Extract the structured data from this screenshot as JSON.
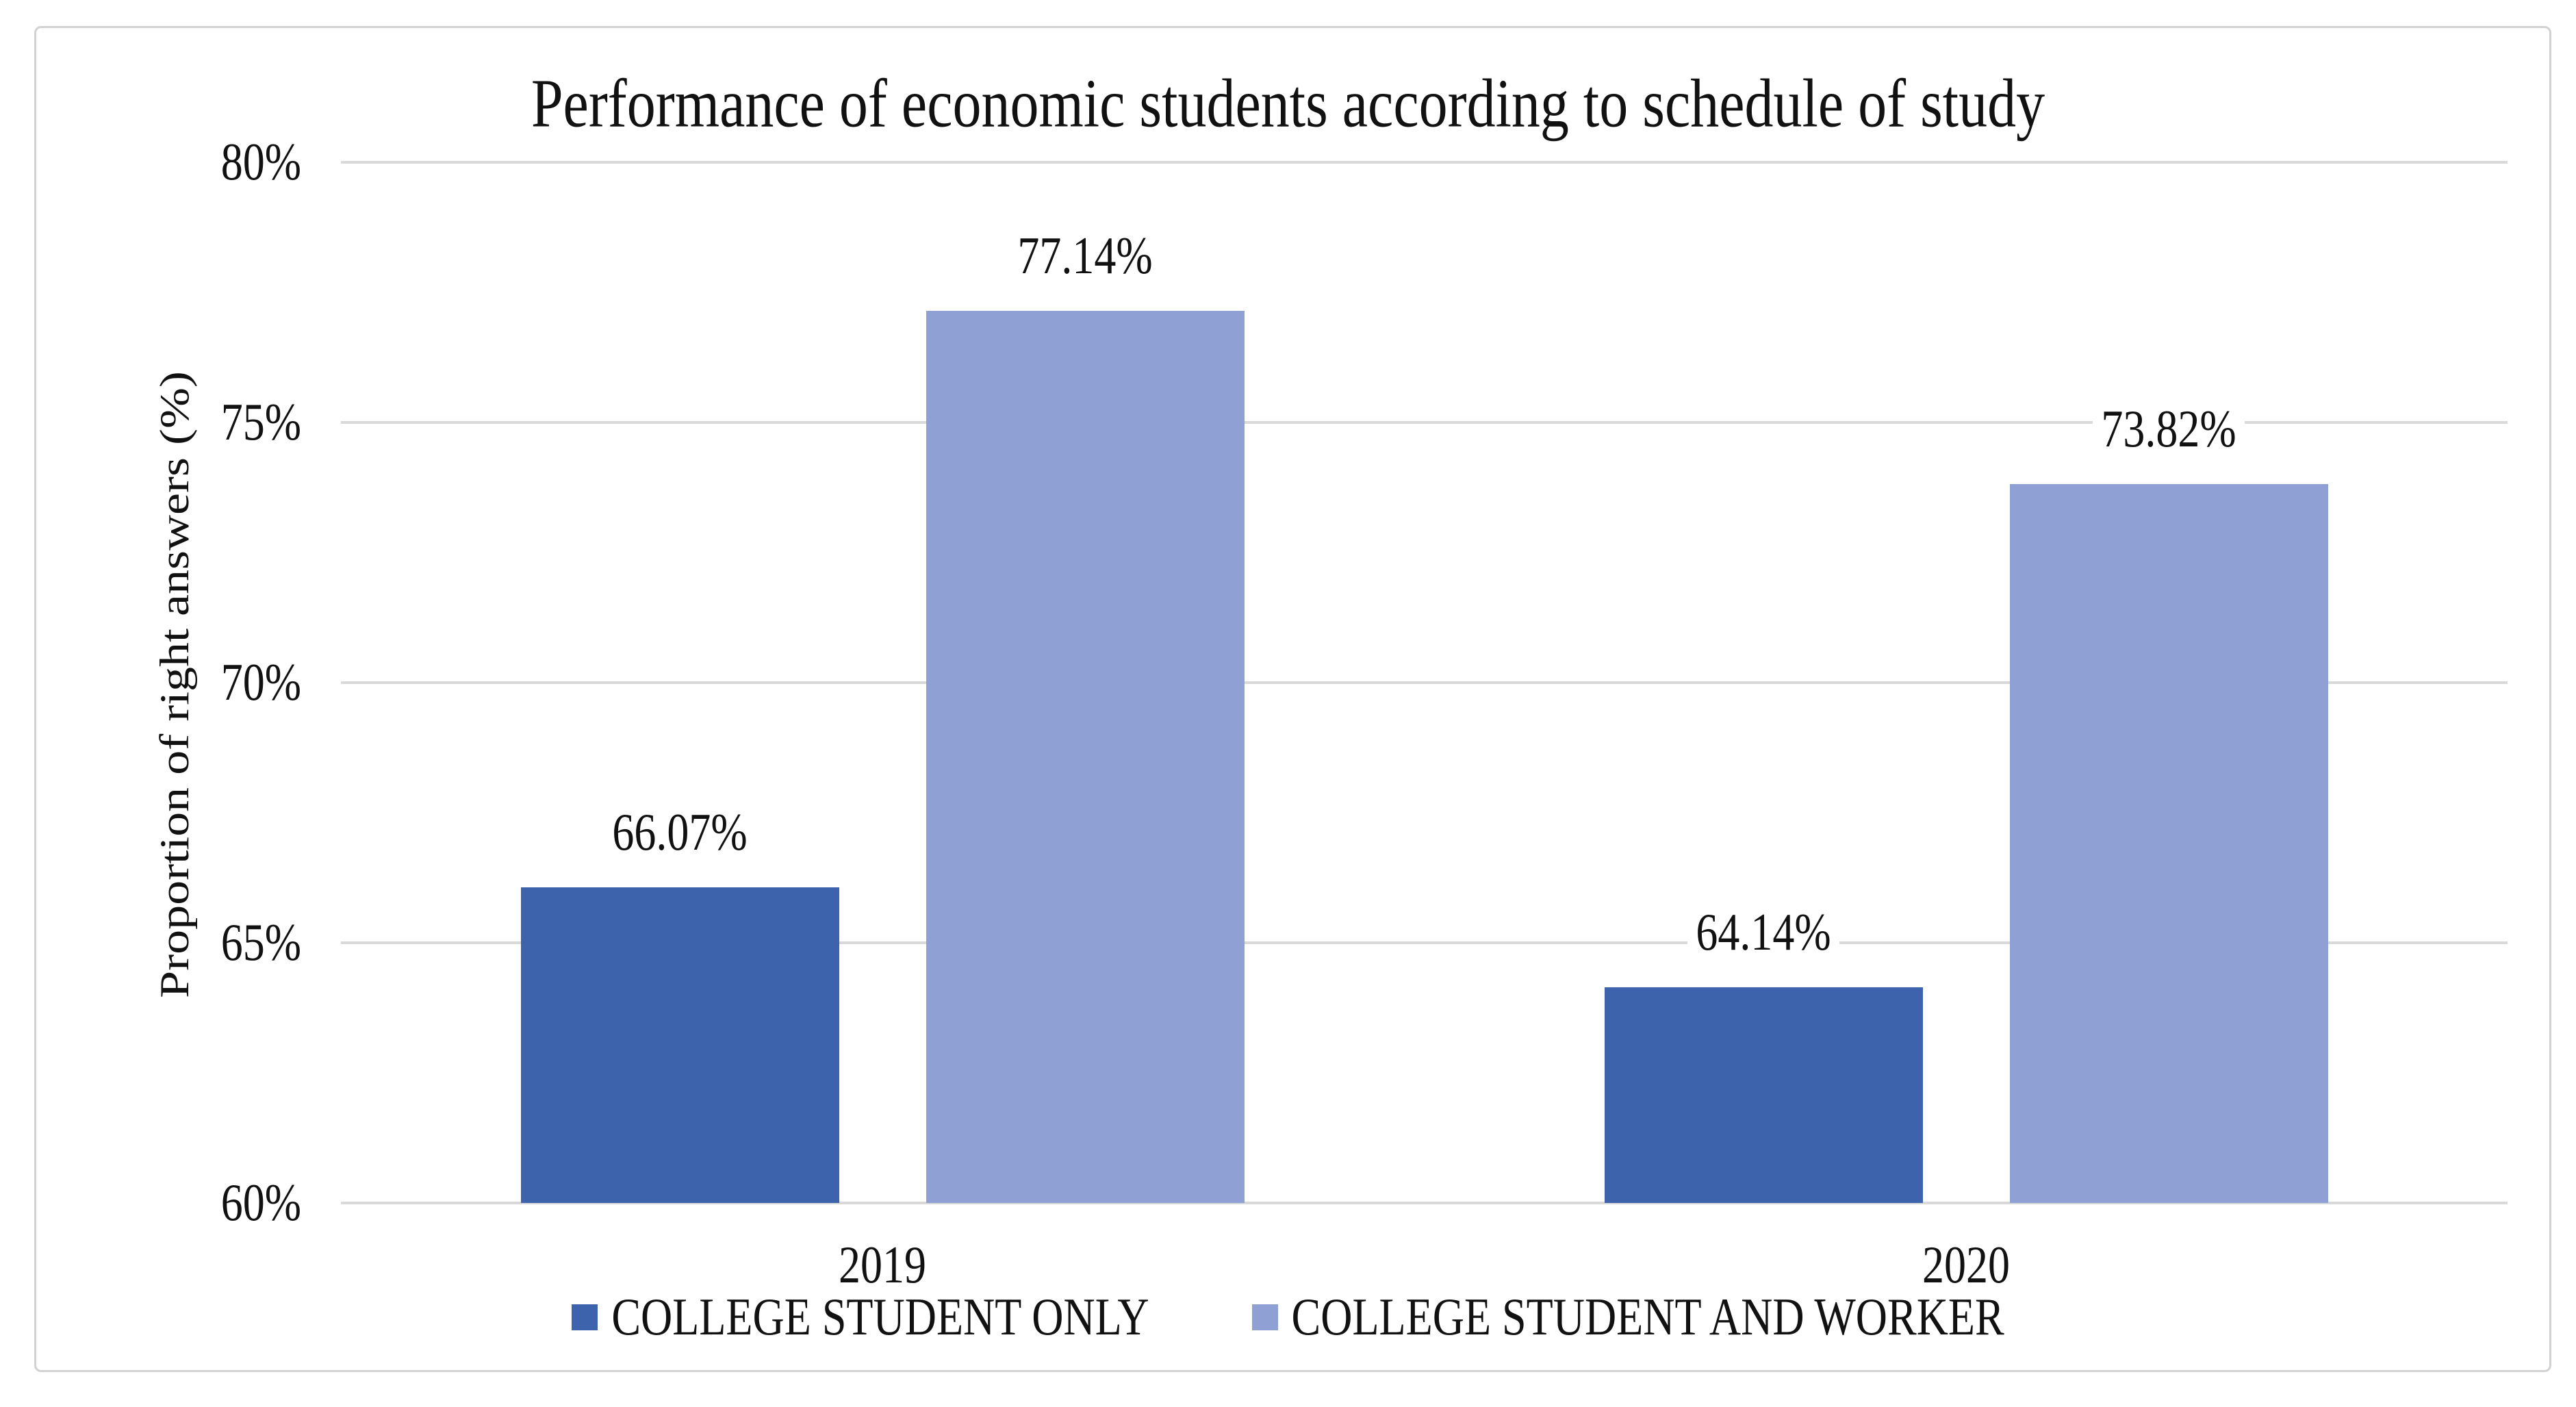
{
  "chart_data": {
    "type": "bar",
    "title": "Performance of economic students according to schedule of study",
    "ylabel": "Proportion of right answers (%)",
    "xlabel": "",
    "categories": [
      "2019",
      "2020"
    ],
    "series": [
      {
        "name": "COLLEGE STUDENT ONLY",
        "color": "#3c63ac",
        "values": [
          66.07,
          64.14
        ],
        "data_labels": [
          "66.07%",
          "64.14%"
        ]
      },
      {
        "name": "COLLEGE STUDENT AND WORKER",
        "color": "#8ea0d4",
        "values": [
          77.14,
          73.82
        ],
        "data_labels": [
          "77.14%",
          "73.82%"
        ]
      }
    ],
    "ylim": [
      60,
      80
    ],
    "yticks": [
      {
        "value": 80,
        "label": "80%"
      },
      {
        "value": 75,
        "label": "75%"
      },
      {
        "value": 70,
        "label": "70%"
      },
      {
        "value": 65,
        "label": "65%"
      },
      {
        "value": 60,
        "label": "60%"
      }
    ],
    "grid": true,
    "legend_position": "bottom",
    "gridline_color": "#d9d9d9",
    "frame_color": "#d2d2d2",
    "background_color": "#ffffff"
  }
}
